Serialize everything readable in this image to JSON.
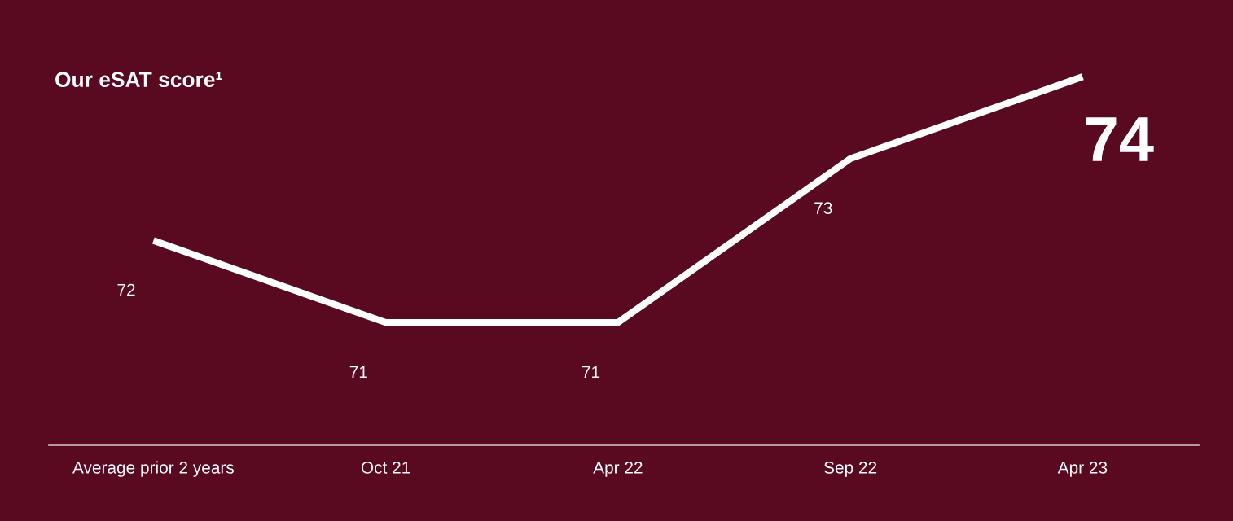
{
  "chart_data": {
    "type": "line",
    "title": "Our eSAT score¹",
    "categories": [
      "Average prior 2 years",
      "Oct 21",
      "Apr 22",
      "Sep 22",
      "Apr 23"
    ],
    "series": [
      {
        "color": "#ffffff",
        "values": [
          72,
          71,
          71,
          73,
          74
        ]
      }
    ],
    "tick_labels": "x",
    "data_labels": true,
    "grid": false,
    "legend": false,
    "marker": "none",
    "line_style": "solid"
  }
}
